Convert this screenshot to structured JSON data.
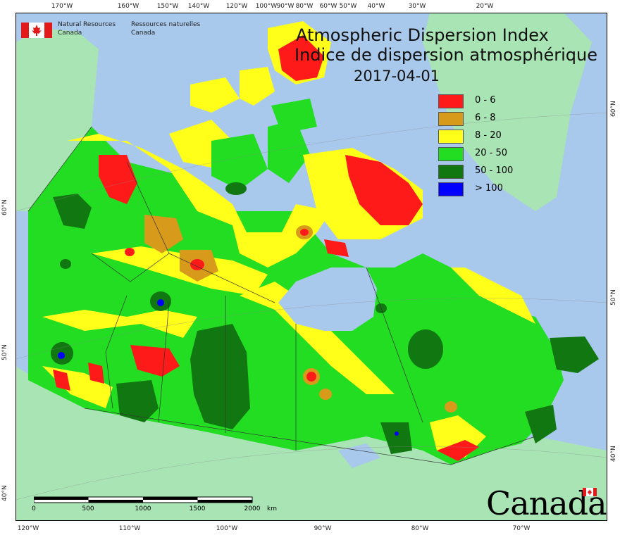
{
  "title": {
    "english": "Atmospheric Dispersion Index",
    "french": "Indice de dispersion atmosphérique",
    "date": "2017-04-01"
  },
  "agency": {
    "name_en_line1": "Natural Resources",
    "name_en_line2": "Canada",
    "name_fr_line1": "Ressources naturelles",
    "name_fr_line2": "Canada",
    "flag_icon": "canada-flag-icon"
  },
  "wordmark": "Canada",
  "legend": [
    {
      "label": "0 - 6",
      "color": "#ff1a1a"
    },
    {
      "label": "6 - 8",
      "color": "#d89a1a"
    },
    {
      "label": "8 - 20",
      "color": "#ffff1a"
    },
    {
      "label": "20 - 50",
      "color": "#22dd22"
    },
    {
      "label": "50 - 100",
      "color": "#117711"
    },
    {
      "label": "> 100",
      "color": "#0000ff"
    }
  ],
  "colors": {
    "ocean": "#a8c8ec",
    "land_outside": "#a8e4b4",
    "boundary": "#333333"
  },
  "graticule": {
    "top_longitudes": [
      "170°W",
      "160°W",
      "150°W",
      "140°W",
      "120°W",
      "100°W",
      "90°W",
      "80°W",
      "60°W",
      "50°W",
      "40°W",
      "30°W",
      "20°W"
    ],
    "bottom_longitudes": [
      "120°W",
      "110°W",
      "100°W",
      "90°W",
      "80°W",
      "70°W"
    ],
    "left_latitudes": [
      "60°N",
      "50°N",
      "40°N"
    ],
    "right_latitudes": [
      "60°N",
      "50°N",
      "40°N"
    ]
  },
  "scale_bar": {
    "labels": [
      "0",
      "500",
      "1000",
      "1500",
      "2000"
    ],
    "unit": "km"
  }
}
